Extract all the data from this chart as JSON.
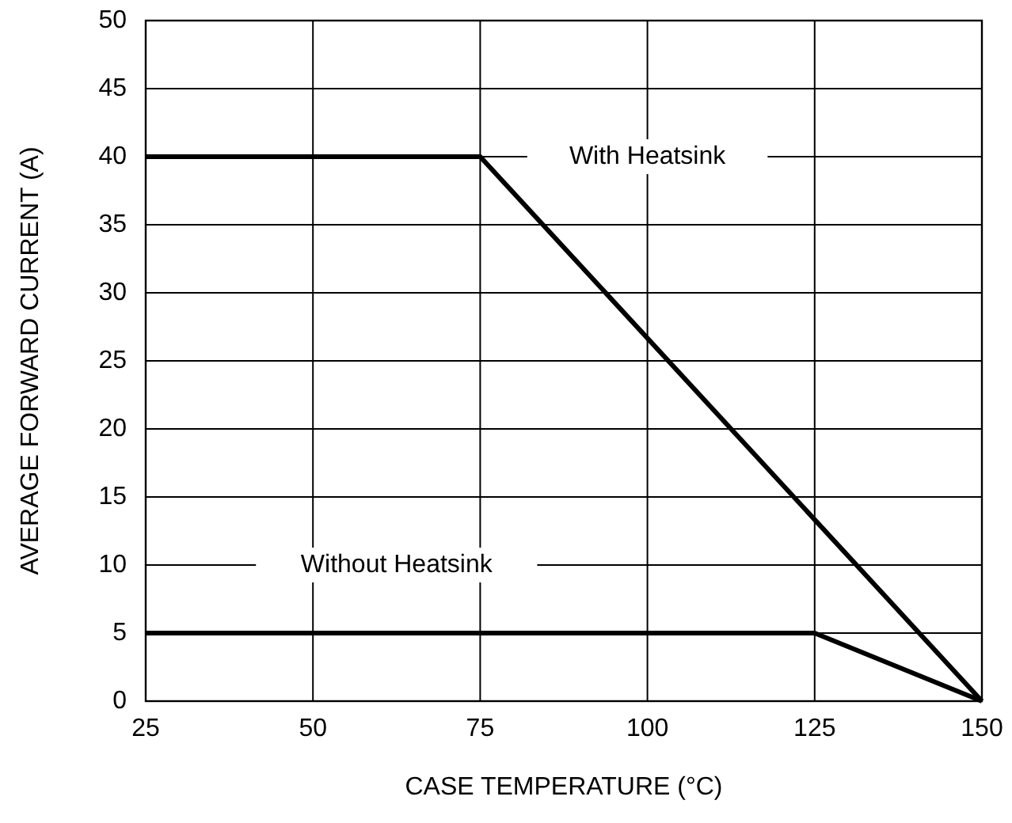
{
  "chart_data": {
    "type": "line",
    "xlabel": "CASE TEMPERATURE (°C)",
    "ylabel": "AVERAGE FORWARD CURRENT (A)",
    "xlim": [
      25,
      150
    ],
    "xticks": [
      25,
      50,
      75,
      100,
      125,
      150
    ],
    "ylim": [
      0,
      50
    ],
    "yticks": [
      0,
      5,
      10,
      15,
      20,
      25,
      30,
      35,
      40,
      45,
      50
    ],
    "grid": true,
    "marker": "none",
    "line_style": "solid",
    "series": [
      {
        "name": "With Heatsink",
        "color": "#000000",
        "x": [
          25,
          75,
          150
        ],
        "values": [
          40,
          40,
          0
        ]
      },
      {
        "name": "Without Heatsink",
        "color": "#000000",
        "x": [
          25,
          125,
          150
        ],
        "values": [
          5,
          5,
          0
        ]
      }
    ]
  }
}
